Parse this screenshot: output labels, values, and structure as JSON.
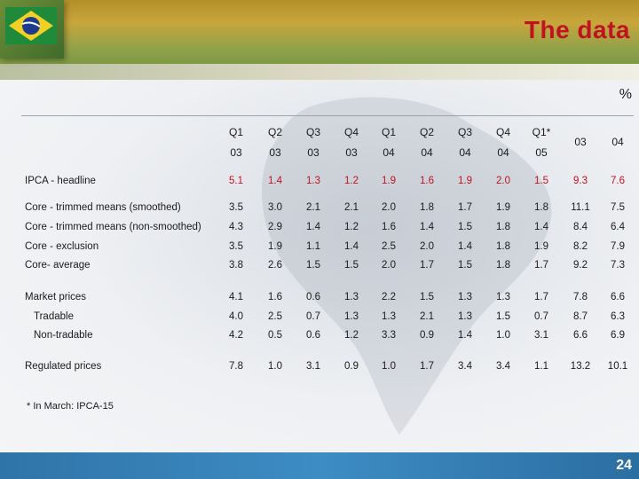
{
  "title": "The data",
  "unit": "%",
  "header_row1": [
    "Q1",
    "Q2",
    "Q3",
    "Q4",
    "Q1",
    "Q2",
    "Q3",
    "Q4",
    "Q1*",
    "03",
    "04"
  ],
  "header_row2": [
    "03",
    "03",
    "03",
    "03",
    "04",
    "04",
    "04",
    "04",
    "05"
  ],
  "rows": [
    {
      "label": "IPCA - headline",
      "values": [
        "5.1",
        "1.4",
        "1.3",
        "1.2",
        "1.9",
        "1.6",
        "1.9",
        "2.0",
        "1.5",
        "9.3",
        "7.6"
      ]
    },
    {
      "label": "Core - trimmed means (smoothed)",
      "values": [
        "3.5",
        "3.0",
        "2.1",
        "2.1",
        "2.0",
        "1.8",
        "1.7",
        "1.9",
        "1.8",
        "11.1",
        "7.5"
      ]
    },
    {
      "label": "Core - trimmed means (non-smoothed)",
      "values": [
        "4.3",
        "2.9",
        "1.4",
        "1.2",
        "1.6",
        "1.4",
        "1.5",
        "1.8",
        "1.4",
        "8.4",
        "6.4"
      ]
    },
    {
      "label": "Core - exclusion",
      "values": [
        "3.5",
        "1.9",
        "1.1",
        "1.4",
        "2.5",
        "2.0",
        "1.4",
        "1.8",
        "1.9",
        "8.2",
        "7.9"
      ]
    },
    {
      "label": "Core- average",
      "values": [
        "3.8",
        "2.6",
        "1.5",
        "1.5",
        "2.0",
        "1.7",
        "1.5",
        "1.8",
        "1.7",
        "9.2",
        "7.3"
      ]
    },
    {
      "label": "Market prices",
      "values": [
        "4.1",
        "1.6",
        "0.6",
        "1.3",
        "2.2",
        "1.5",
        "1.3",
        "1.3",
        "1.7",
        "7.8",
        "6.6"
      ]
    },
    {
      "label": "Tradable",
      "values": [
        "4.0",
        "2.5",
        "0.7",
        "1.3",
        "1.3",
        "2.1",
        "1.3",
        "1.5",
        "0.7",
        "8.7",
        "6.3"
      ]
    },
    {
      "label": "Non-tradable",
      "values": [
        "4.2",
        "0.5",
        "0.6",
        "1.2",
        "3.3",
        "0.9",
        "1.4",
        "1.0",
        "3.1",
        "6.6",
        "6.9"
      ]
    },
    {
      "label": "Regulated prices",
      "values": [
        "7.8",
        "1.0",
        "3.1",
        "0.9",
        "1.0",
        "1.7",
        "3.4",
        "3.4",
        "1.1",
        "13.2",
        "10.1"
      ]
    }
  ],
  "footnote": "* In March: IPCA-15",
  "page_number": "24",
  "colors": {
    "title": "#c1121f",
    "headline_row": "#c1121f",
    "footer": "#3d8cc4"
  },
  "icons": {
    "flag": "brazil-flag-icon",
    "background": "south-america-map"
  }
}
